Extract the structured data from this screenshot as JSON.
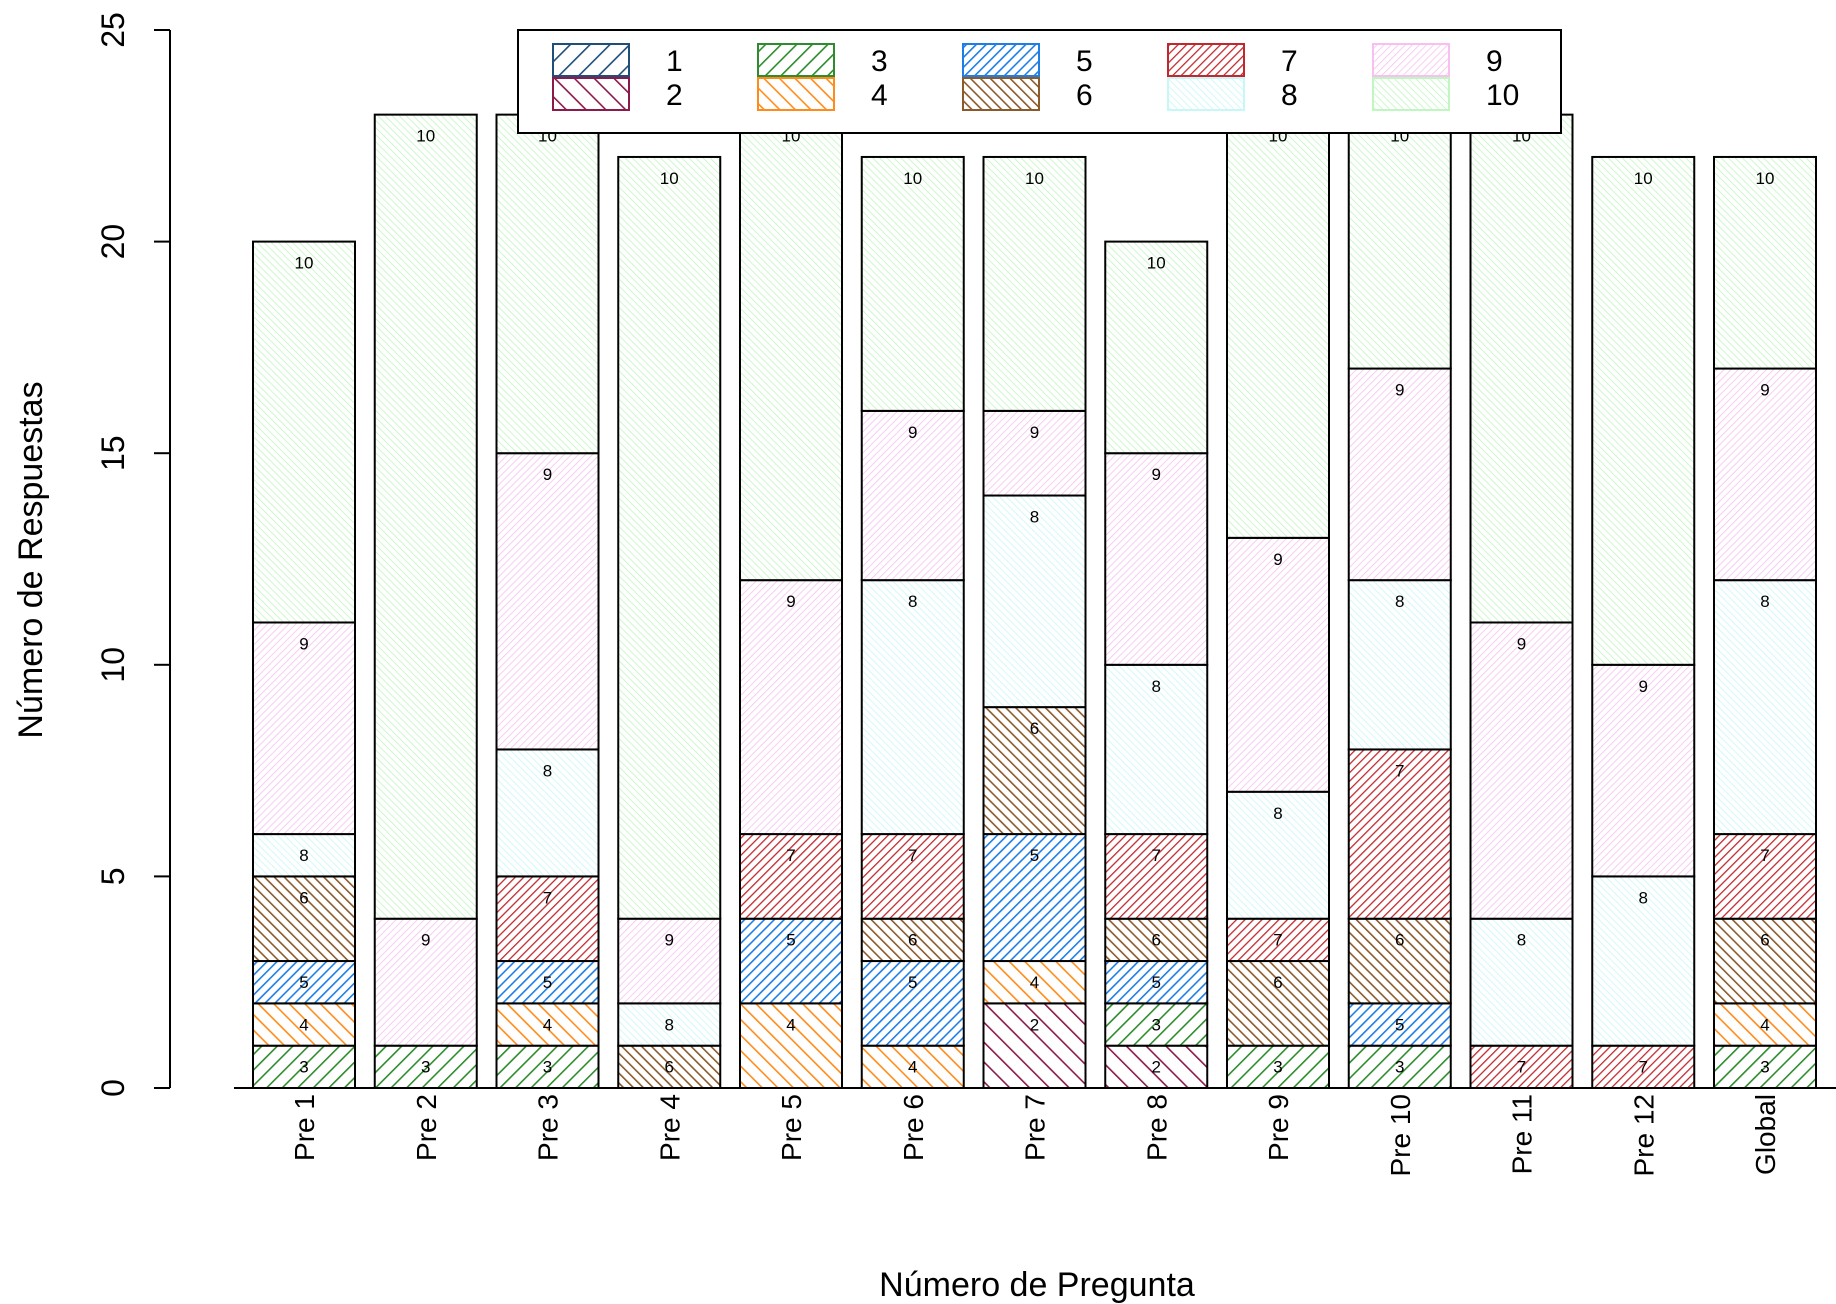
{
  "chart_data": {
    "type": "bar",
    "stacked": true,
    "xlabel": "Número de Pregunta",
    "ylabel": "Número de Respuestas",
    "ylim": [
      0,
      25
    ],
    "yticks": [
      "0",
      "5",
      "10",
      "15",
      "20",
      "25"
    ],
    "grid": false,
    "legend_position": "top",
    "categories": [
      "Pre 1",
      "Pre 2",
      "Pre 3",
      "Pre 4",
      "Pre 5",
      "Pre 6",
      "Pre 7",
      "Pre 8",
      "Pre 9",
      "Pre 10",
      "Pre 11",
      "Pre 12",
      "Global"
    ],
    "series": [
      {
        "name": "1",
        "color": "#1f4e79",
        "values": [
          0,
          0,
          0,
          0,
          0,
          0,
          0,
          0,
          0,
          0,
          0,
          0,
          0
        ]
      },
      {
        "name": "2",
        "color": "#8b1a4a",
        "values": [
          0,
          0,
          0,
          0,
          0,
          0,
          2,
          1,
          0,
          0,
          0,
          0,
          0
        ]
      },
      {
        "name": "3",
        "color": "#2e8b2e",
        "values": [
          1,
          1,
          1,
          0,
          0,
          0,
          0,
          1,
          1,
          1,
          0,
          0,
          1
        ]
      },
      {
        "name": "4",
        "color": "#ff8c1a",
        "values": [
          1,
          0,
          1,
          0,
          2,
          1,
          1,
          0,
          0,
          0,
          0,
          0,
          1
        ]
      },
      {
        "name": "5",
        "color": "#1e7ee6",
        "values": [
          1,
          0,
          1,
          0,
          2,
          2,
          3,
          1,
          0,
          1,
          0,
          0,
          0
        ]
      },
      {
        "name": "6",
        "color": "#8b5a2b",
        "values": [
          2,
          0,
          0,
          1,
          0,
          1,
          3,
          1,
          2,
          2,
          0,
          0,
          2
        ]
      },
      {
        "name": "7",
        "color": "#c0282d",
        "values": [
          0,
          0,
          2,
          0,
          2,
          2,
          0,
          2,
          1,
          4,
          1,
          1,
          2
        ]
      },
      {
        "name": "8",
        "color": "#c8f7f7",
        "values": [
          1,
          0,
          3,
          1,
          0,
          6,
          5,
          4,
          3,
          4,
          3,
          4,
          6
        ]
      },
      {
        "name": "9",
        "color": "#f7c0f0",
        "values": [
          5,
          3,
          7,
          2,
          6,
          4,
          2,
          5,
          6,
          5,
          7,
          5,
          5
        ]
      },
      {
        "name": "10",
        "color": "#c0f7c0",
        "values": [
          9,
          19,
          8,
          18,
          11,
          6,
          6,
          5,
          10,
          6,
          12,
          12,
          5
        ]
      }
    ]
  }
}
